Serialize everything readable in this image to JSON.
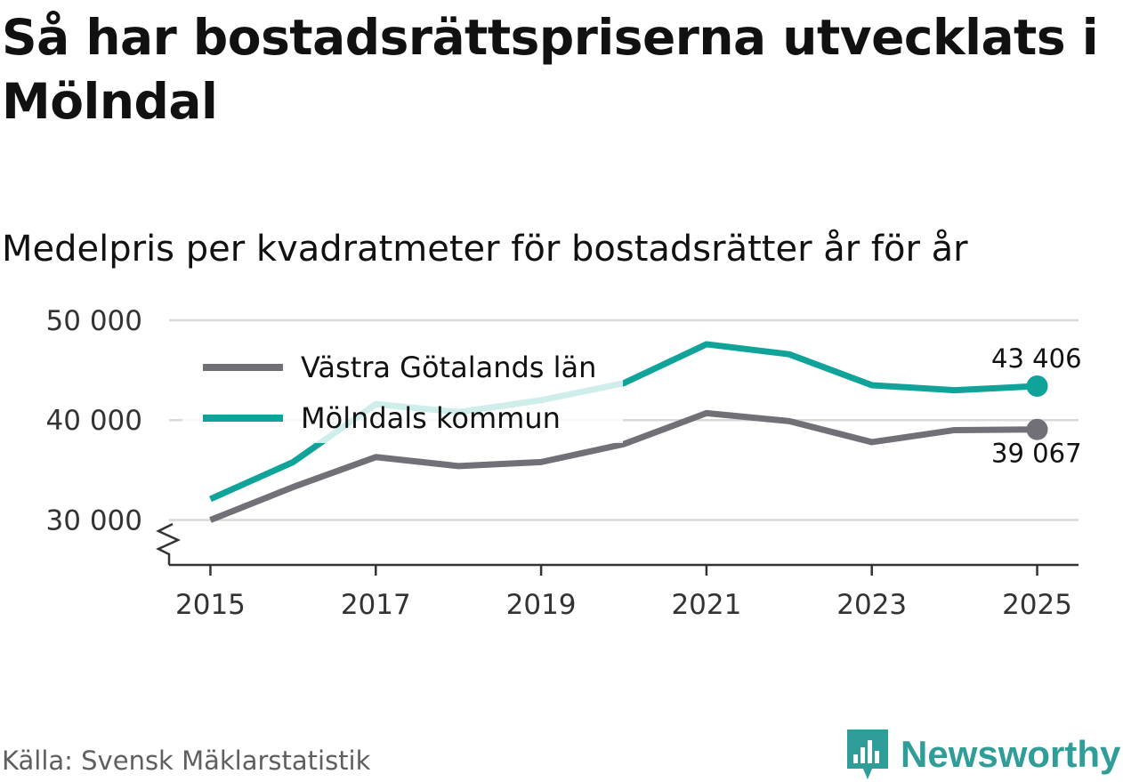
{
  "title": "Så har bostadsrättspriserna utvecklats i Mölndal",
  "subtitle": "Medelpris per kvadratmeter för bostadsrätter år för år",
  "source": "Källa: Svensk Mäklarstatistik",
  "brand": {
    "name": "Newsworthy"
  },
  "colors": {
    "lan": "#717076",
    "kommun": "#0fa39a",
    "grid": "#d9d9d9",
    "axis": "#333333"
  },
  "chart_data": {
    "type": "line",
    "title": "Så har bostadsrättspriserna utvecklats i Mölndal",
    "subtitle": "Medelpris per kvadratmeter för bostadsrätter år för år",
    "xlabel": "",
    "ylabel": "",
    "x": [
      2015,
      2016,
      2017,
      2018,
      2019,
      2020,
      2021,
      2022,
      2023,
      2024,
      2025
    ],
    "xlim": [
      2014.5,
      2025.5
    ],
    "ylim": [
      25500,
      50000
    ],
    "y_ticks": [
      30000,
      40000,
      50000
    ],
    "y_tick_labels": [
      "30 000",
      "40 000",
      "50 000"
    ],
    "x_ticks": [
      2015,
      2017,
      2019,
      2021,
      2023,
      2025
    ],
    "x_tick_labels": [
      "2015",
      "2017",
      "2019",
      "2021",
      "2023",
      "2025"
    ],
    "grid": true,
    "legend_position": "top-left",
    "series": [
      {
        "name": "Västra Götalands län",
        "color_key": "lan",
        "values": [
          30000,
          33300,
          36300,
          35400,
          35800,
          37600,
          40700,
          39900,
          37800,
          39000,
          39067
        ],
        "end_label": "39 067"
      },
      {
        "name": "Mölndals kommun",
        "color_key": "kommun",
        "values": [
          32100,
          35800,
          41600,
          40800,
          42000,
          43700,
          47600,
          46600,
          43500,
          43000,
          43406
        ],
        "end_label": "43 406"
      }
    ]
  }
}
